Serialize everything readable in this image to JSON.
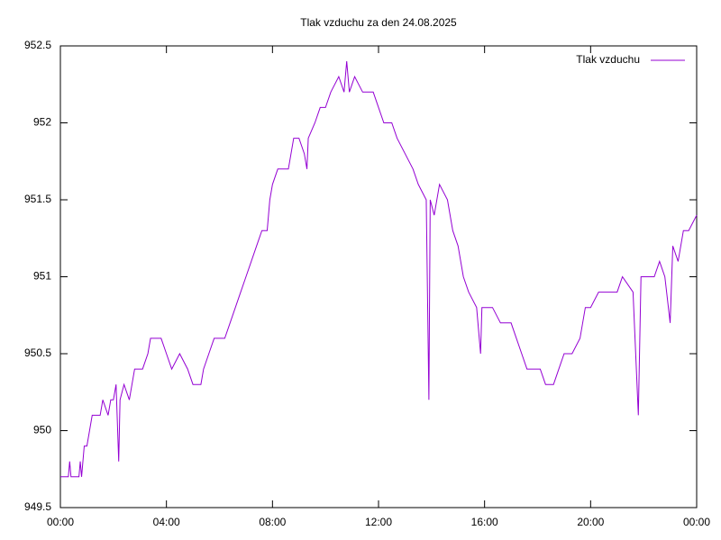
{
  "chart_data": {
    "type": "line",
    "title": "Tlak vzduchu za den 24.08.2025",
    "x": [
      0,
      0.3,
      0.35,
      0.4,
      0.7,
      0.75,
      0.8,
      0.9,
      1.0,
      1.1,
      1.2,
      1.5,
      1.6,
      1.8,
      1.9,
      2.0,
      2.1,
      2.2,
      2.25,
      2.4,
      2.6,
      2.8,
      3.1,
      3.3,
      3.4,
      3.8,
      4.0,
      4.2,
      4.5,
      4.8,
      5.0,
      5.3,
      5.4,
      5.6,
      5.8,
      6.2,
      6.4,
      6.6,
      6.8,
      7.0,
      7.2,
      7.4,
      7.6,
      7.8,
      7.9,
      8.0,
      8.2,
      8.6,
      8.7,
      8.8,
      9.0,
      9.2,
      9.3,
      9.35,
      9.6,
      9.8,
      10.0,
      10.2,
      10.5,
      10.7,
      10.8,
      10.9,
      11.1,
      11.4,
      11.8,
      12.0,
      12.2,
      12.5,
      12.7,
      13.0,
      13.3,
      13.5,
      13.8,
      13.9,
      13.95,
      14.1,
      14.3,
      14.6,
      14.8,
      15.0,
      15.2,
      15.4,
      15.7,
      15.85,
      15.9,
      16.3,
      16.6,
      17.0,
      17.2,
      17.4,
      17.6,
      17.9,
      18.1,
      18.3,
      18.6,
      18.8,
      19.0,
      19.3,
      19.6,
      19.8,
      20.0,
      20.3,
      21.0,
      21.2,
      21.6,
      21.8,
      21.9,
      22.4,
      22.6,
      22.8,
      23.0,
      23.1,
      23.3,
      23.5,
      23.7,
      24.0
    ],
    "series": [
      {
        "name": "Tlak vzduchu",
        "color": "#9400d3",
        "values": [
          949.7,
          949.7,
          949.8,
          949.7,
          949.7,
          949.8,
          949.7,
          949.9,
          949.9,
          950.0,
          950.1,
          950.1,
          950.2,
          950.1,
          950.2,
          950.2,
          950.3,
          949.8,
          950.2,
          950.3,
          950.2,
          950.4,
          950.4,
          950.5,
          950.6,
          950.6,
          950.5,
          950.4,
          950.5,
          950.4,
          950.3,
          950.3,
          950.4,
          950.5,
          950.6,
          950.6,
          950.7,
          950.8,
          950.9,
          951.0,
          951.1,
          951.2,
          951.3,
          951.3,
          951.5,
          951.6,
          951.7,
          951.7,
          951.8,
          951.9,
          951.9,
          951.8,
          951.7,
          951.9,
          952.0,
          952.1,
          952.1,
          952.2,
          952.3,
          952.2,
          952.4,
          952.2,
          952.3,
          952.2,
          952.2,
          952.1,
          952.0,
          952.0,
          951.9,
          951.8,
          951.7,
          951.6,
          951.5,
          950.2,
          951.5,
          951.4,
          951.6,
          951.5,
          951.3,
          951.2,
          951.0,
          950.9,
          950.8,
          950.5,
          950.8,
          950.8,
          950.7,
          950.7,
          950.6,
          950.5,
          950.4,
          950.4,
          950.4,
          950.3,
          950.3,
          950.4,
          950.5,
          950.5,
          950.6,
          950.8,
          950.8,
          950.9,
          950.9,
          951.0,
          950.9,
          950.1,
          951.0,
          951.0,
          951.1,
          951.0,
          950.7,
          951.2,
          951.1,
          951.3,
          951.3,
          951.4
        ]
      }
    ],
    "xlim": [
      0,
      24
    ],
    "xticks": [
      {
        "value": 0,
        "label": "00:00"
      },
      {
        "value": 4,
        "label": "04:00"
      },
      {
        "value": 8,
        "label": "08:00"
      },
      {
        "value": 12,
        "label": "12:00"
      },
      {
        "value": 16,
        "label": "16:00"
      },
      {
        "value": 20,
        "label": "20:00"
      },
      {
        "value": 24,
        "label": "00:00"
      }
    ],
    "ylim": [
      949.5,
      952.5
    ],
    "yticks": [
      949.5,
      950,
      950.5,
      951,
      951.5,
      952,
      952.5
    ],
    "legend": "upper right"
  }
}
